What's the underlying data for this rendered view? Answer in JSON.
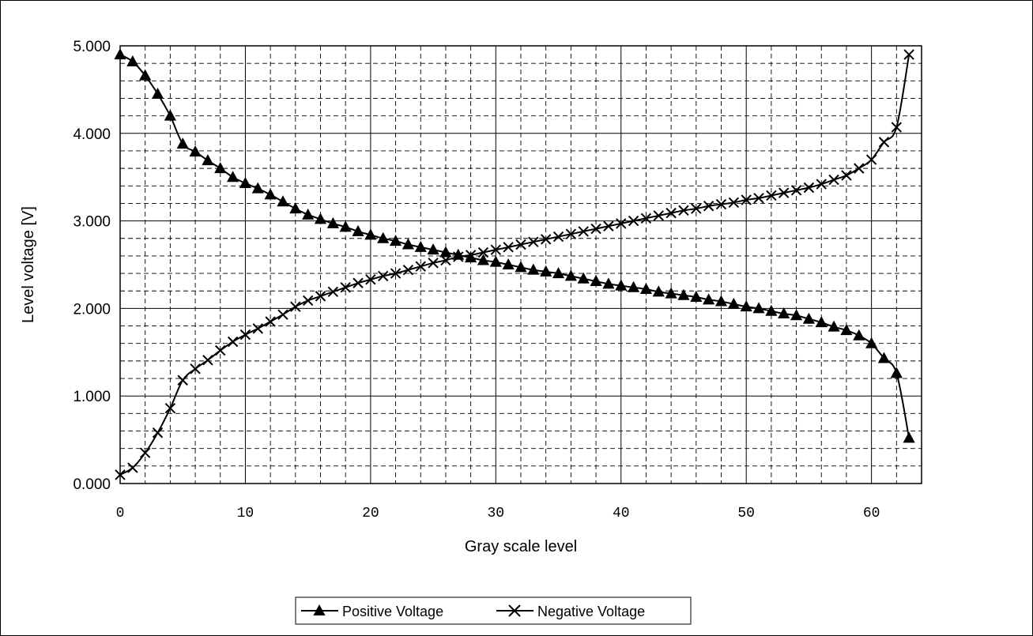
{
  "chart_data": {
    "type": "line",
    "xlabel": "Gray scale level",
    "ylabel": "Level voltage [V]",
    "xlim": [
      0,
      64
    ],
    "ylim": [
      0,
      5
    ],
    "x_ticks": [
      "0",
      "10",
      "20",
      "30",
      "40",
      "50",
      "60"
    ],
    "y_ticks": [
      "0.000",
      "1.000",
      "2.000",
      "3.000",
      "4.000",
      "5.000"
    ],
    "grid": "major solid, minor dashed",
    "legend_position": "bottom",
    "series": [
      {
        "name": "Positive Voltage",
        "marker": "triangle",
        "x": [
          0,
          1,
          2,
          3,
          4,
          5,
          6,
          7,
          8,
          9,
          10,
          11,
          12,
          13,
          14,
          15,
          16,
          17,
          18,
          19,
          20,
          21,
          22,
          23,
          24,
          25,
          26,
          27,
          28,
          29,
          30,
          31,
          32,
          33,
          34,
          35,
          36,
          37,
          38,
          39,
          40,
          41,
          42,
          43,
          44,
          45,
          46,
          47,
          48,
          49,
          50,
          51,
          52,
          53,
          54,
          55,
          56,
          57,
          58,
          59,
          60,
          61,
          62,
          63
        ],
        "values": [
          4.9,
          4.82,
          4.66,
          4.45,
          4.2,
          3.88,
          3.79,
          3.69,
          3.6,
          3.5,
          3.43,
          3.37,
          3.3,
          3.22,
          3.14,
          3.07,
          3.02,
          2.97,
          2.93,
          2.88,
          2.84,
          2.8,
          2.77,
          2.73,
          2.7,
          2.67,
          2.64,
          2.61,
          2.58,
          2.55,
          2.53,
          2.5,
          2.47,
          2.44,
          2.42,
          2.4,
          2.37,
          2.34,
          2.31,
          2.28,
          2.26,
          2.24,
          2.22,
          2.19,
          2.17,
          2.15,
          2.13,
          2.1,
          2.08,
          2.05,
          2.02,
          2.0,
          1.97,
          1.94,
          1.92,
          1.88,
          1.84,
          1.79,
          1.75,
          1.69,
          1.6,
          1.43,
          1.26,
          0.52
        ]
      },
      {
        "name": "Negative Voltage",
        "marker": "x",
        "x": [
          0,
          1,
          2,
          3,
          4,
          5,
          6,
          7,
          8,
          9,
          10,
          11,
          12,
          13,
          14,
          15,
          16,
          17,
          18,
          19,
          20,
          21,
          22,
          23,
          24,
          25,
          26,
          27,
          28,
          29,
          30,
          31,
          32,
          33,
          34,
          35,
          36,
          37,
          38,
          39,
          40,
          41,
          42,
          43,
          44,
          45,
          46,
          47,
          48,
          49,
          50,
          51,
          52,
          53,
          54,
          55,
          56,
          57,
          58,
          59,
          60,
          61,
          62,
          63
        ],
        "values": [
          0.1,
          0.18,
          0.35,
          0.58,
          0.86,
          1.18,
          1.31,
          1.41,
          1.52,
          1.62,
          1.7,
          1.77,
          1.85,
          1.93,
          2.02,
          2.09,
          2.14,
          2.19,
          2.24,
          2.29,
          2.33,
          2.37,
          2.4,
          2.44,
          2.48,
          2.52,
          2.55,
          2.59,
          2.61,
          2.64,
          2.67,
          2.7,
          2.73,
          2.76,
          2.79,
          2.82,
          2.85,
          2.88,
          2.91,
          2.94,
          2.97,
          3.0,
          3.03,
          3.06,
          3.09,
          3.12,
          3.14,
          3.17,
          3.19,
          3.21,
          3.24,
          3.26,
          3.29,
          3.32,
          3.35,
          3.38,
          3.42,
          3.47,
          3.52,
          3.6,
          3.7,
          3.9,
          4.07,
          4.9
        ]
      }
    ]
  }
}
